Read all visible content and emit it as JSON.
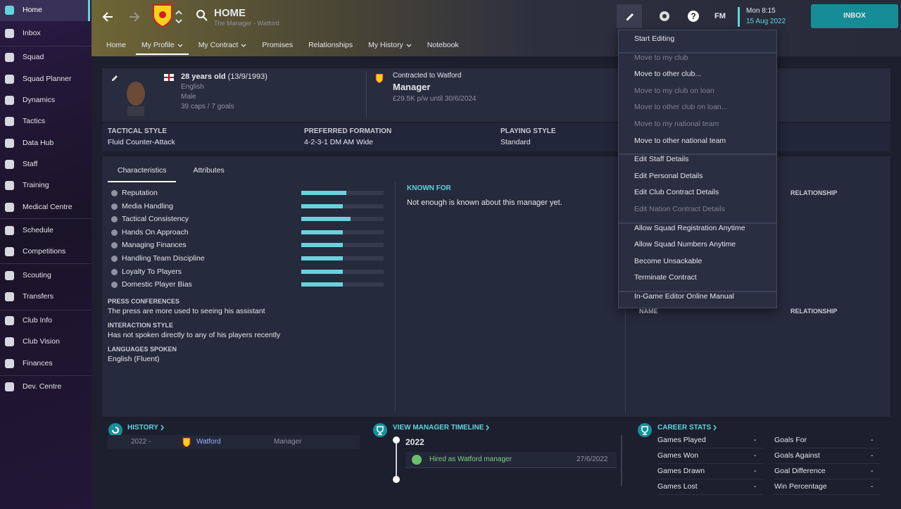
{
  "sidebar": {
    "items": [
      {
        "label": "Home",
        "selected": true
      },
      {
        "label": "Inbox"
      },
      {
        "label": "Squad"
      },
      {
        "label": "Squad Planner"
      },
      {
        "label": "Dynamics"
      },
      {
        "label": "Tactics"
      },
      {
        "label": "Data Hub"
      },
      {
        "label": "Staff"
      },
      {
        "label": "Training"
      },
      {
        "label": "Medical Centre"
      },
      {
        "label": "Schedule"
      },
      {
        "label": "Competitions"
      },
      {
        "label": "Scouting"
      },
      {
        "label": "Transfers"
      },
      {
        "label": "Club Info"
      },
      {
        "label": "Club Vision"
      },
      {
        "label": "Finances"
      },
      {
        "label": "Dev. Centre"
      }
    ]
  },
  "header": {
    "title": "HOME",
    "subtitle": "The Manager - Watford",
    "tabs": [
      {
        "label": "Home"
      },
      {
        "label": "My Profile",
        "dropdown": true,
        "selected": true
      },
      {
        "label": "My Contract",
        "dropdown": true
      },
      {
        "label": "Promises"
      },
      {
        "label": "Relationships"
      },
      {
        "label": "My History",
        "dropdown": true
      },
      {
        "label": "Notebook"
      }
    ]
  },
  "topbar": {
    "logo": "FM",
    "time": "Mon 8:15",
    "date": "15 Aug 2022",
    "inbox": "INBOX"
  },
  "profile": {
    "age": "28 years old",
    "dob": "(13/9/1993)",
    "nationality": "English",
    "gender": "Male",
    "caps": "39 caps / 7 goals",
    "contract_label": "Contracted to Watford",
    "role": "Manager",
    "contract": "£29.5K p/w until 30/6/2024"
  },
  "styles": [
    {
      "label": "TACTICAL STYLE",
      "value": "Fluid Counter-Attack"
    },
    {
      "label": "PREFERRED FORMATION",
      "value": "4-2-3-1 DM AM Wide"
    },
    {
      "label": "PLAYING STYLE",
      "value": "Standard"
    }
  ],
  "section_tabs": [
    {
      "label": "Characteristics",
      "selected": true
    },
    {
      "label": "Attributes"
    }
  ],
  "characteristics": {
    "range": [
      0,
      100
    ],
    "items": [
      {
        "label": "Reputation",
        "value": 55
      },
      {
        "label": "Media Handling",
        "value": 50
      },
      {
        "label": "Tactical Consistency",
        "value": 60
      },
      {
        "label": "Hands On Approach",
        "value": 50
      },
      {
        "label": "Managing Finances",
        "value": 50
      },
      {
        "label": "Handling Team Discipline",
        "value": 50
      },
      {
        "label": "Loyalty To Players",
        "value": 50
      },
      {
        "label": "Domestic Player Bias",
        "value": 50
      }
    ]
  },
  "info": [
    {
      "label": "PRESS CONFERENCES",
      "value": "The press are more used to seeing his assistant"
    },
    {
      "label": "INTERACTION STYLE",
      "value": "Has not spoken directly to any of his players recently"
    },
    {
      "label": "LANGUAGES SPOKEN",
      "value": "English (Fluent)"
    }
  ],
  "known_for": {
    "title": "KNOWN FOR",
    "text": "Not enough is known about this manager yet."
  },
  "relationships": {
    "header_top": "RELATIONSHIP",
    "name_header": "NAME",
    "header_bottom": "RELATIONSHIP"
  },
  "history": {
    "title": "HISTORY",
    "rows": [
      {
        "year": "2022 -",
        "club": "Watford",
        "role": "Manager"
      }
    ]
  },
  "timeline": {
    "title": "VIEW MANAGER TIMELINE",
    "year": "2022",
    "events": [
      {
        "text": "Hired as Watford manager",
        "date": "27/6/2022"
      }
    ]
  },
  "career_stats": {
    "title": "CAREER STATS",
    "items": [
      {
        "label": "Games Played",
        "value": "-"
      },
      {
        "label": "Games Won",
        "value": "-"
      },
      {
        "label": "Games Drawn",
        "value": "-"
      },
      {
        "label": "Games Lost",
        "value": "-"
      },
      {
        "label": "Goals For",
        "value": "-"
      },
      {
        "label": "Goals Against",
        "value": "-"
      },
      {
        "label": "Goal Difference",
        "value": "-"
      },
      {
        "label": "Win Percentage",
        "value": "-"
      }
    ]
  },
  "menu": {
    "groups": [
      [
        {
          "label": "Start Editing",
          "enabled": true
        }
      ],
      [
        {
          "label": "Move to my club",
          "enabled": false
        },
        {
          "label": "Move to other club...",
          "enabled": true
        },
        {
          "label": "Move to my club on loan",
          "enabled": false
        },
        {
          "label": "Move to other club on loan...",
          "enabled": false
        },
        {
          "label": "Move to my national team",
          "enabled": false
        },
        {
          "label": "Move to other national team",
          "enabled": true
        }
      ],
      [
        {
          "label": "Edit Staff Details",
          "enabled": true
        },
        {
          "label": "Edit Personal Details",
          "enabled": true
        },
        {
          "label": "Edit Club Contract Details",
          "enabled": true
        },
        {
          "label": "Edit Nation Contract Details",
          "enabled": false
        }
      ],
      [
        {
          "label": "Allow Squad Registration Anytime",
          "enabled": true
        },
        {
          "label": "Allow Squad Numbers Anytime",
          "enabled": true
        },
        {
          "label": "Become Unsackable",
          "enabled": true
        },
        {
          "label": "Terminate Contract",
          "enabled": true
        }
      ],
      [
        {
          "label": "In-Game Editor Online Manual",
          "enabled": true
        }
      ]
    ]
  }
}
